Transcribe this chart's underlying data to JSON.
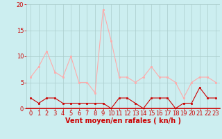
{
  "hours": [
    0,
    1,
    2,
    3,
    4,
    5,
    6,
    7,
    8,
    9,
    10,
    11,
    12,
    13,
    14,
    15,
    16,
    17,
    18,
    19,
    20,
    21,
    22,
    23
  ],
  "wind_avg": [
    2,
    1,
    2,
    2,
    1,
    1,
    1,
    1,
    1,
    1,
    0,
    2,
    2,
    1,
    0,
    2,
    2,
    2,
    0,
    1,
    1,
    4,
    2,
    2
  ],
  "wind_gust": [
    6,
    8,
    11,
    7,
    6,
    10,
    5,
    5,
    3,
    19,
    13,
    6,
    6,
    5,
    6,
    8,
    6,
    6,
    5,
    2,
    5,
    6,
    6,
    5
  ],
  "bg_color": "#cceef0",
  "grid_color": "#aacccc",
  "line_avg_color": "#cc0000",
  "line_gust_color": "#ffaaaa",
  "marker_avg_color": "#cc0000",
  "marker_gust_color": "#ffaaaa",
  "xlabel": "Vent moyen/en rafales ( kn/h )",
  "xlabel_color": "#cc0000",
  "tick_color": "#cc0000",
  "spine_bottom_color": "#cc0000",
  "ylim": [
    0,
    20
  ],
  "yticks": [
    0,
    5,
    10,
    15,
    20
  ],
  "title_fontsize": 7,
  "tick_fontsize": 6,
  "xlabel_fontsize": 7
}
